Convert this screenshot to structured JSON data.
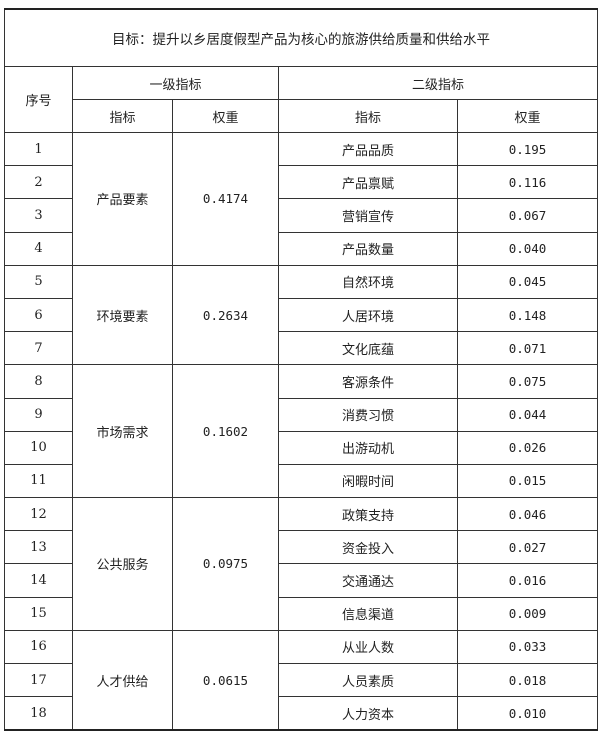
{
  "title": "目标：提升以乡居度假型产品为核心的旅游供给质量和供给水平",
  "headers": {
    "index": "序号",
    "level1": "一级指标",
    "level2": "二级指标",
    "indicator": "指标",
    "weight": "权重"
  },
  "groups": [
    {
      "name": "产品要素",
      "weight": "0.4174",
      "items": [
        {
          "no": "1",
          "name": "产品品质",
          "weight": "0.195"
        },
        {
          "no": "2",
          "name": "产品禀赋",
          "weight": "0.116"
        },
        {
          "no": "3",
          "name": "营销宣传",
          "weight": "0.067"
        },
        {
          "no": "4",
          "name": "产品数量",
          "weight": "0.040"
        }
      ]
    },
    {
      "name": "环境要素",
      "weight": "0.2634",
      "items": [
        {
          "no": "5",
          "name": "自然环境",
          "weight": "0.045"
        },
        {
          "no": "6",
          "name": "人居环境",
          "weight": "0.148"
        },
        {
          "no": "7",
          "name": "文化底蕴",
          "weight": "0.071"
        }
      ]
    },
    {
      "name": "市场需求",
      "weight": "0.1602",
      "items": [
        {
          "no": "8",
          "name": "客源条件",
          "weight": "0.075"
        },
        {
          "no": "9",
          "name": "消费习惯",
          "weight": "0.044"
        },
        {
          "no": "10",
          "name": "出游动机",
          "weight": "0.026"
        },
        {
          "no": "11",
          "name": "闲暇时间",
          "weight": "0.015"
        }
      ]
    },
    {
      "name": "公共服务",
      "weight": "0.0975",
      "items": [
        {
          "no": "12",
          "name": "政策支持",
          "weight": "0.046"
        },
        {
          "no": "13",
          "name": "资金投入",
          "weight": "0.027"
        },
        {
          "no": "14",
          "name": "交通通达",
          "weight": "0.016"
        },
        {
          "no": "15",
          "name": "信息渠道",
          "weight": "0.009"
        }
      ]
    },
    {
      "name": "人才供给",
      "weight": "0.0615",
      "items": [
        {
          "no": "16",
          "name": "从业人数",
          "weight": "0.033"
        },
        {
          "no": "17",
          "name": "人员素质",
          "weight": "0.018"
        },
        {
          "no": "18",
          "name": "人力资本",
          "weight": "0.010"
        }
      ]
    }
  ]
}
